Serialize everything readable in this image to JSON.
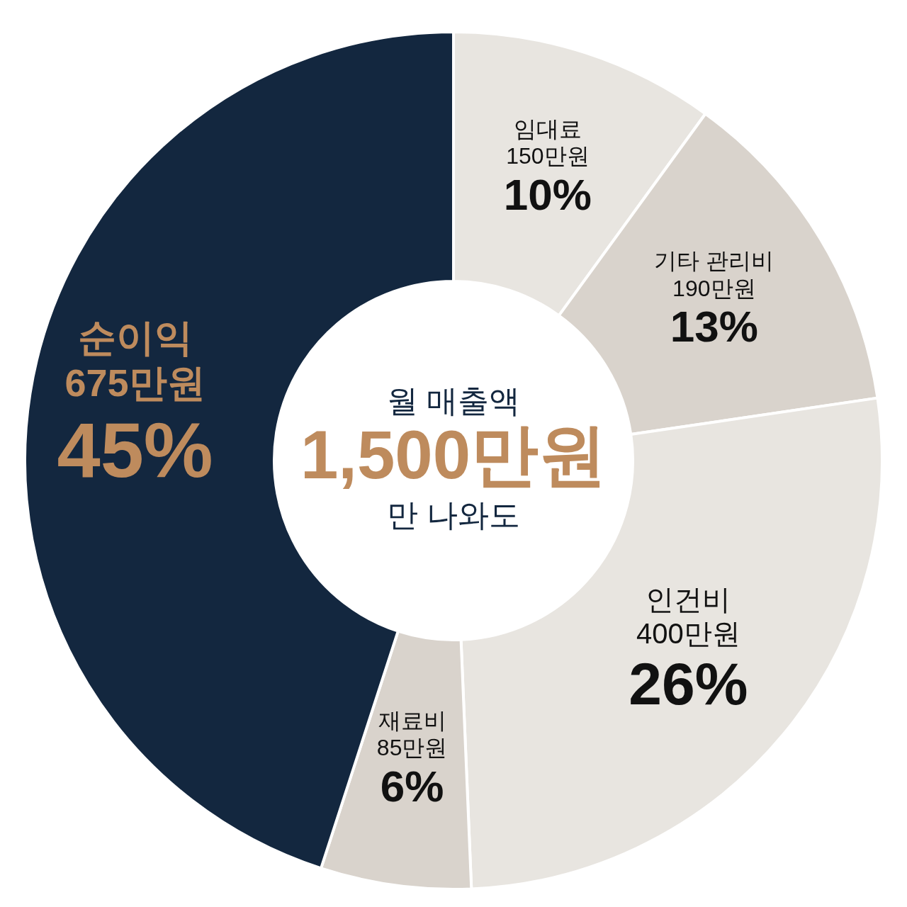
{
  "chart_data": {
    "type": "donut",
    "categories": [
      "임대료",
      "기타 관리비",
      "인건비",
      "재료비",
      "순이익"
    ],
    "values": [
      150,
      190,
      400,
      85,
      675
    ],
    "value_labels": [
      "150만원",
      "190만원",
      "400만원",
      "85만원",
      "675만원"
    ],
    "colors": [
      "#e8e5e0",
      "#d9d3cc",
      "#e8e5e0",
      "#d9d3cc",
      "#13273f"
    ],
    "annotations": [
      "월 매출액",
      "1,500만원",
      "만 나와도",
      {
        "text": "10%",
        "x": "임대료"
      },
      {
        "text": "13%",
        "x": "기타 관리비"
      },
      {
        "text": "26%",
        "x": "인건비"
      },
      {
        "text": "6%",
        "x": "재료비"
      },
      {
        "text": "45%",
        "x": "순이익"
      }
    ],
    "legend": false
  }
}
